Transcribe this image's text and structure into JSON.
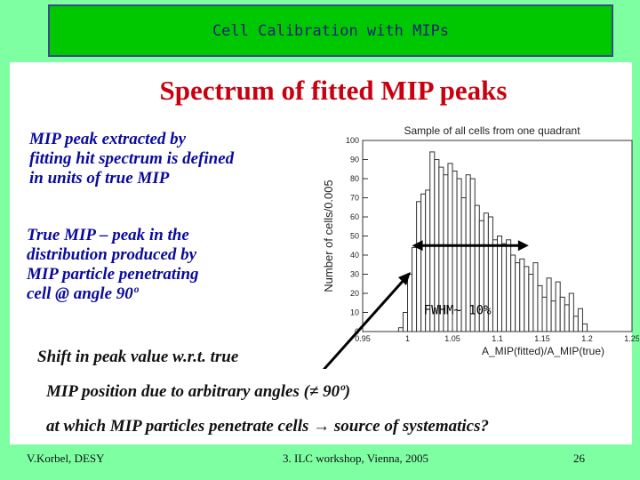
{
  "slide_title": "Cell Calibration with MIPs",
  "heading": "Spectrum of fitted MIP peaks",
  "para1": [
    "MIP peak extracted by",
    "fitting hit spectrum is defined",
    "in units of true MIP"
  ],
  "para2": [
    "True MIP – peak in the",
    "distribution produced by",
    "MIP particle penetrating",
    "cell @ angle 90º"
  ],
  "bottom_lines": [
    "Shift in peak value w.r.t. true",
    "MIP position due to arbitrary angles (≠ 90º)",
    "at which MIP particles penetrate cells → source of systematics?"
  ],
  "footer": {
    "author": "V.Korbel, DESY",
    "event": "3. ILC workshop, Vienna, 2005",
    "page": "26"
  },
  "colors": {
    "slide_bg": "#7dffa2",
    "title_bar": "#00c800",
    "heading": "#c8000f",
    "text_blue": "#0a0a9c"
  },
  "chart_data": {
    "type": "bar",
    "title": "Sample of all cells from one quadrant",
    "xlabel": "A_MIP(fitted)/A_MIP(true)",
    "ylabel": "Number of cells/0.005",
    "xlim": [
      0.95,
      1.25
    ],
    "ylim": [
      0,
      100
    ],
    "x_ticks": [
      "0.95",
      "1",
      "1.05",
      "1.1",
      "1.15",
      "1.2",
      "1.25"
    ],
    "y_ticks": [
      "0",
      "10",
      "20",
      "30",
      "40",
      "50",
      "60",
      "70",
      "80",
      "90",
      "100"
    ],
    "bin_width": 0.005,
    "x": [
      0.99,
      0.995,
      1.0,
      1.005,
      1.01,
      1.015,
      1.02,
      1.025,
      1.03,
      1.035,
      1.04,
      1.045,
      1.05,
      1.055,
      1.06,
      1.065,
      1.07,
      1.075,
      1.08,
      1.085,
      1.09,
      1.095,
      1.1,
      1.105,
      1.11,
      1.115,
      1.12,
      1.125,
      1.13,
      1.135,
      1.14,
      1.145,
      1.15,
      1.155,
      1.16,
      1.165,
      1.17,
      1.175,
      1.18,
      1.185,
      1.19,
      1.195
    ],
    "values": [
      2,
      10,
      30,
      44,
      68,
      72,
      74,
      94,
      90,
      86,
      82,
      88,
      84,
      80,
      70,
      82,
      80,
      66,
      58,
      62,
      60,
      48,
      50,
      46,
      48,
      40,
      36,
      38,
      34,
      30,
      36,
      24,
      18,
      28,
      16,
      26,
      18,
      14,
      20,
      8,
      12,
      4
    ],
    "annotation": {
      "label": "FWHM~ 10%",
      "range": [
        1.005,
        1.135
      ],
      "level": 45
    }
  }
}
